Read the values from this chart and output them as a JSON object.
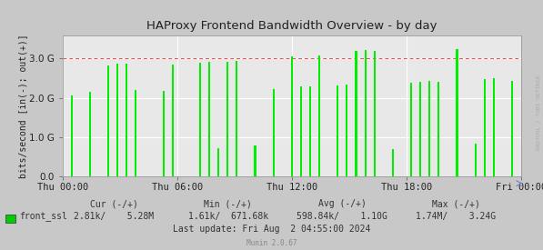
{
  "title": "HAProxy Frontend Bandwidth Overview - by day",
  "ylabel": "bits/second [in(-); out(+)]",
  "xlabel_ticks": [
    "Thu 00:00",
    "Thu 06:00",
    "Thu 12:00",
    "Thu 18:00",
    "Fri 00:00"
  ],
  "ylim": [
    0,
    3600000000.0
  ],
  "yticks": [
    0.0,
    1000000000.0,
    2000000000.0,
    3000000000.0
  ],
  "ytick_labels": [
    "0.0",
    "1.0 G",
    "2.0 G",
    "3.0 G"
  ],
  "bg_color": "#c8c8c8",
  "plot_bg_color": "#e8e8e8",
  "grid_color": "#ffffff",
  "bar_color": "#00ee00",
  "title_color": "#222222",
  "axis_color": "#222222",
  "legend_color": "#00cc00",
  "rrdtool_text": "RRDTOOL / TOBI OETIKER",
  "munin_version": "Munin 2.0.67",
  "n_points": 600,
  "spike_positions": [
    0.02,
    0.04,
    0.06,
    0.08,
    0.1,
    0.12,
    0.14,
    0.16,
    0.18,
    0.2,
    0.22,
    0.24,
    0.26,
    0.28,
    0.3,
    0.32,
    0.34,
    0.36,
    0.38,
    0.4,
    0.42,
    0.44,
    0.46,
    0.48,
    0.5,
    0.52,
    0.54,
    0.56,
    0.58,
    0.6,
    0.62,
    0.64,
    0.66,
    0.68,
    0.7,
    0.72,
    0.74,
    0.76,
    0.78,
    0.8,
    0.82,
    0.84,
    0.86,
    0.88,
    0.9,
    0.92,
    0.94,
    0.96,
    0.98
  ],
  "spike_heights": [
    2050000000.0,
    0.0,
    2150000000.0,
    0.0,
    2820000000.0,
    2880000000.0,
    2870000000.0,
    2200000000.0,
    0.0,
    0.0,
    2180000000.0,
    2850000000.0,
    0.0,
    0.0,
    2900000000.0,
    2920000000.0,
    720000000.0,
    2920000000.0,
    2950000000.0,
    0.0,
    780000000.0,
    0.0,
    2220000000.0,
    0.0,
    3050000000.0,
    2280000000.0,
    2300000000.0,
    3070000000.0,
    0.0,
    2320000000.0,
    2340000000.0,
    3200000000.0,
    3220000000.0,
    3200000000.0,
    0.0,
    700000000.0,
    0.0,
    2380000000.0,
    2400000000.0,
    2420000000.0,
    2400000000.0,
    0.0,
    3250000000.0,
    0.0,
    820000000.0,
    2480000000.0,
    2500000000.0,
    0.0,
    2440000000.0
  ]
}
